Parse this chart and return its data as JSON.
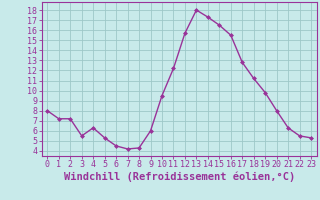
{
  "x": [
    0,
    1,
    2,
    3,
    4,
    5,
    6,
    7,
    8,
    9,
    10,
    11,
    12,
    13,
    14,
    15,
    16,
    17,
    18,
    19,
    20,
    21,
    22,
    23
  ],
  "y": [
    8.0,
    7.2,
    7.2,
    5.5,
    6.3,
    5.3,
    4.5,
    4.2,
    4.3,
    6.0,
    9.5,
    12.2,
    15.7,
    18.0,
    17.3,
    16.5,
    15.5,
    12.8,
    11.2,
    9.8,
    8.0,
    6.3,
    5.5,
    5.3
  ],
  "line_color": "#993399",
  "marker": "D",
  "marker_size": 2.0,
  "bg_color": "#c8eaea",
  "grid_color": "#9ec8c8",
  "axis_color": "#993399",
  "xlabel": "Windchill (Refroidissement éolien,°C)",
  "xlabel_fontsize": 7.5,
  "ylabel_ticks": [
    4,
    5,
    6,
    7,
    8,
    9,
    10,
    11,
    12,
    13,
    14,
    15,
    16,
    17,
    18
  ],
  "ylim": [
    3.5,
    18.8
  ],
  "xlim": [
    -0.5,
    23.5
  ],
  "tick_fontsize": 6.0,
  "linewidth": 1.0
}
